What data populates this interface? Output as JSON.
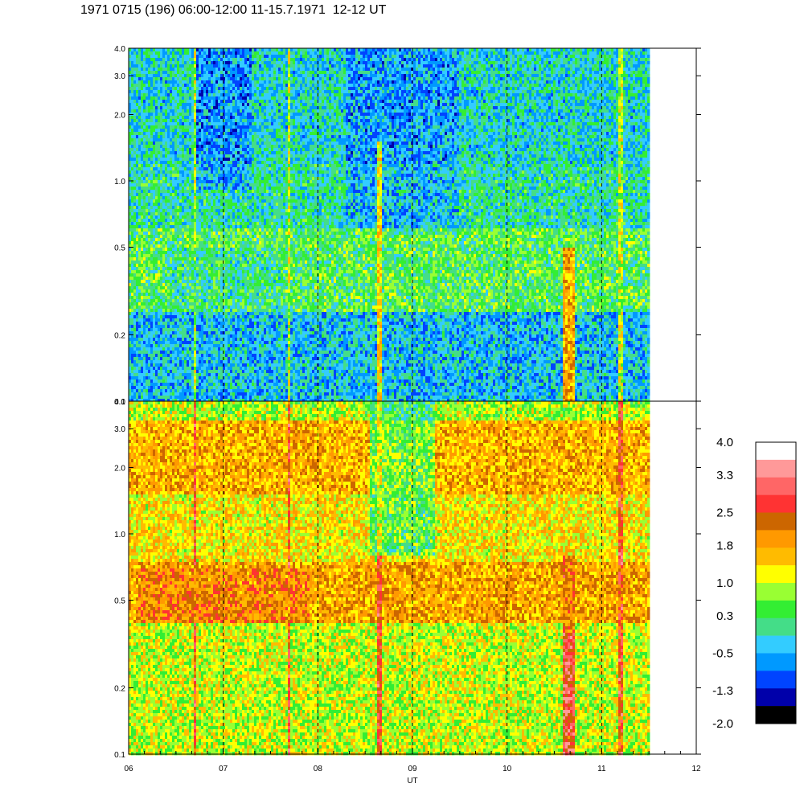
{
  "title": "1971 0715 (196) 06:00-12:00 11-15.7.1971  12-12 UT",
  "chart_data": [
    {
      "type": "heatmap",
      "panel": "top",
      "xlim": [
        6,
        12
      ],
      "ylim": [
        0.1,
        4.0
      ],
      "yscale": "log",
      "yticks": [
        "0.1",
        "0.2",
        "0.5",
        "1.0",
        "2.0",
        "3.0",
        "4.0"
      ],
      "data_end_x": 11.5,
      "vertical_dashed_lines_at": [
        7,
        8,
        9,
        10,
        11
      ],
      "features": [
        {
          "x_center": 10.65,
          "x_halfwidth": 0.06,
          "y_min": 0.1,
          "y_max": 0.5,
          "level": 1.8
        },
        {
          "x_center": 6.7,
          "x_halfwidth": 0.015,
          "y_min": 0.1,
          "y_max": 4.0,
          "level": 1.0
        },
        {
          "x_center": 7.7,
          "x_halfwidth": 0.015,
          "y_min": 0.1,
          "y_max": 4.0,
          "level": 1.0
        },
        {
          "x_center": 8.65,
          "x_halfwidth": 0.015,
          "y_min": 0.1,
          "y_max": 1.5,
          "level": 1.4
        },
        {
          "x_center": 11.2,
          "x_halfwidth": 0.015,
          "y_min": 0.1,
          "y_max": 4.0,
          "level": 1.0
        },
        {
          "x_center": 7.0,
          "x_halfwidth": 0.6,
          "y_min": 0.25,
          "y_max": 0.5,
          "level": 0.3
        }
      ]
    },
    {
      "type": "heatmap",
      "panel": "bottom",
      "xlim": [
        6,
        12
      ],
      "ylim": [
        0.1,
        4.0
      ],
      "yscale": "log",
      "yticks": [
        "0.1",
        "0.2",
        "0.5",
        "1.0",
        "2.0",
        "3.0",
        "4.0"
      ],
      "xticks": [
        "06",
        "07",
        "08",
        "09",
        "10",
        "11",
        "12"
      ],
      "xlabel": "UT",
      "data_end_x": 11.5,
      "vertical_dashed_lines_at": [
        7,
        8,
        9,
        10,
        11
      ],
      "features": [
        {
          "x_center": 10.65,
          "x_halfwidth": 0.06,
          "y_min": 0.1,
          "y_max": 0.35,
          "level": 2.8
        },
        {
          "x_center": 10.65,
          "x_halfwidth": 0.06,
          "y_min": 0.35,
          "y_max": 0.8,
          "level": 2.2
        },
        {
          "x_center": 6.7,
          "x_halfwidth": 0.015,
          "y_min": 0.1,
          "y_max": 4.0,
          "level": 2.6
        },
        {
          "x_center": 7.7,
          "x_halfwidth": 0.015,
          "y_min": 0.1,
          "y_max": 4.0,
          "level": 2.6
        },
        {
          "x_center": 8.65,
          "x_halfwidth": 0.015,
          "y_min": 0.1,
          "y_max": 4.0,
          "level": 2.6
        },
        {
          "x_center": 11.2,
          "x_halfwidth": 0.015,
          "y_min": 0.1,
          "y_max": 4.0,
          "level": 2.6
        },
        {
          "x_center": 8.9,
          "x_halfwidth": 0.35,
          "y_min": 0.8,
          "y_max": 4.0,
          "level": 0.0
        },
        {
          "x_center": 7.0,
          "x_halfwidth": 0.9,
          "y_min": 0.4,
          "y_max": 0.7,
          "level": 1.9
        }
      ]
    }
  ],
  "colorbar": {
    "labels": [
      "4.0",
      "3.3",
      "2.5",
      "1.8",
      "1.0",
      "0.3",
      "-0.5",
      "-1.3",
      "-2.0"
    ],
    "colors": [
      "#ffffff",
      "#ff9999",
      "#ff6666",
      "#ff3333",
      "#cc6600",
      "#ff9900",
      "#ffbb00",
      "#ffff00",
      "#99ff33",
      "#33ee33",
      "#44dd88",
      "#33ccff",
      "#0099ff",
      "#0044ff",
      "#0000aa",
      "#000000"
    ]
  }
}
